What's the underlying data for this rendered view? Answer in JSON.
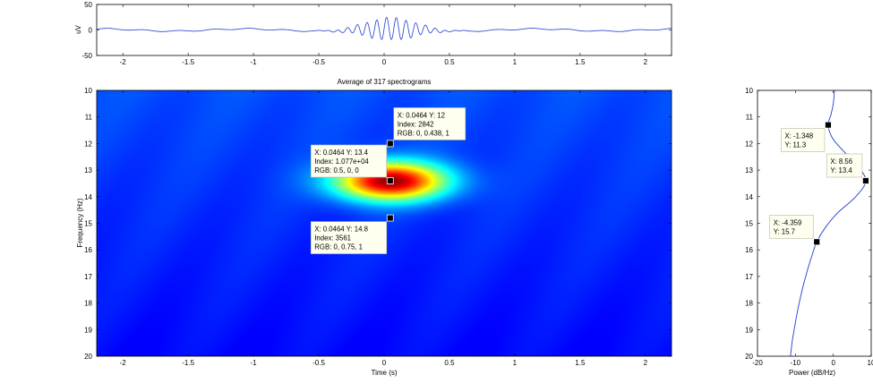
{
  "chart_data": [
    {
      "type": "line",
      "title": "",
      "xlabel": "",
      "ylabel": "uV",
      "xlim": [
        -2.2,
        2.2
      ],
      "ylim": [
        -50,
        50
      ],
      "xticks": [
        -2,
        -1.5,
        -1,
        -0.5,
        0,
        0.5,
        1,
        1.5,
        2
      ],
      "yticks": [
        50,
        0,
        -50
      ],
      "color": "#1f3fd1",
      "signal": {
        "burst_center": 0.05,
        "burst_width": 0.27,
        "burst_amp": 22,
        "burst_freq": 13.4,
        "noise_amp": 2.2
      },
      "grid": false,
      "legend": "none"
    },
    {
      "type": "heatmap",
      "title": "Average of 317 spectrograms",
      "xlabel": "Time (s)",
      "ylabel": "Frequency (Hz)",
      "xlim": [
        -2.2,
        2.2
      ],
      "ylim": [
        10,
        20
      ],
      "y_reversed": true,
      "xticks": [
        -2,
        -1.5,
        -1,
        -0.5,
        0,
        0.5,
        1,
        1.5,
        2
      ],
      "yticks": [
        10,
        11,
        12,
        13,
        14,
        15,
        16,
        17,
        18,
        19,
        20
      ],
      "colormap": "jet",
      "peak": {
        "x": 0.0464,
        "y": 13.4
      },
      "datatips": [
        {
          "x": 0.0464,
          "y": 12,
          "label_line1": "X: 0.0464 Y: 12",
          "label_line2": "Index: 2842",
          "label_line3": "RGB: 0, 0.438, 1",
          "placement": "upper-right"
        },
        {
          "x": 0.0464,
          "y": 13.4,
          "label_line1": "X: 0.0464 Y: 13.4",
          "label_line2": "Index: 1.077e+04",
          "label_line3": "RGB: 0.5, 0, 0",
          "placement": "upper-left"
        },
        {
          "x": 0.0464,
          "y": 14.8,
          "label_line1": "X: 0.0464 Y: 14.8",
          "label_line2": "Index: 3561",
          "label_line3": "RGB: 0, 0.75, 1",
          "placement": "lower-left"
        }
      ]
    },
    {
      "type": "line",
      "title": "",
      "xlabel": "Power (dB/Hz)",
      "ylabel": "",
      "xlim": [
        -20,
        10
      ],
      "ylim": [
        10,
        20
      ],
      "y_reversed": true,
      "xticks": [
        -20,
        -10,
        0,
        10
      ],
      "yticks": [
        10,
        11,
        12,
        13,
        14,
        15,
        16,
        17,
        18,
        19,
        20
      ],
      "color": "#1f3fd1",
      "points": [
        {
          "x": 0.3,
          "y": 10.0
        },
        {
          "x": 0.0,
          "y": 10.5
        },
        {
          "x": -0.6,
          "y": 10.9
        },
        {
          "x": -1.348,
          "y": 11.3
        },
        {
          "x": -0.2,
          "y": 11.8
        },
        {
          "x": 2.8,
          "y": 12.3
        },
        {
          "x": 6.2,
          "y": 12.8
        },
        {
          "x": 8.56,
          "y": 13.4
        },
        {
          "x": 5.9,
          "y": 14.0
        },
        {
          "x": 1.2,
          "y": 14.6
        },
        {
          "x": -2.3,
          "y": 15.2
        },
        {
          "x": -4.359,
          "y": 15.7
        },
        {
          "x": -5.6,
          "y": 16.2
        },
        {
          "x": -6.9,
          "y": 16.8
        },
        {
          "x": -8.2,
          "y": 17.5
        },
        {
          "x": -9.3,
          "y": 18.2
        },
        {
          "x": -10.2,
          "y": 18.9
        },
        {
          "x": -10.9,
          "y": 19.5
        },
        {
          "x": -11.3,
          "y": 20.0
        }
      ],
      "datatips": [
        {
          "x": -1.348,
          "y": 11.3,
          "label_line1": "X: -1.348",
          "label_line2": "Y: 11.3",
          "placement": "lower-left"
        },
        {
          "x": 8.56,
          "y": 13.4,
          "label_line1": "X: 8.56",
          "label_line2": "Y: 13.4",
          "placement": "upper-left"
        },
        {
          "x": -4.359,
          "y": 15.7,
          "label_line1": "X: -4.359",
          "label_line2": "Y: 15.7",
          "placement": "upper-left"
        }
      ],
      "grid": false,
      "legend": "none"
    }
  ]
}
